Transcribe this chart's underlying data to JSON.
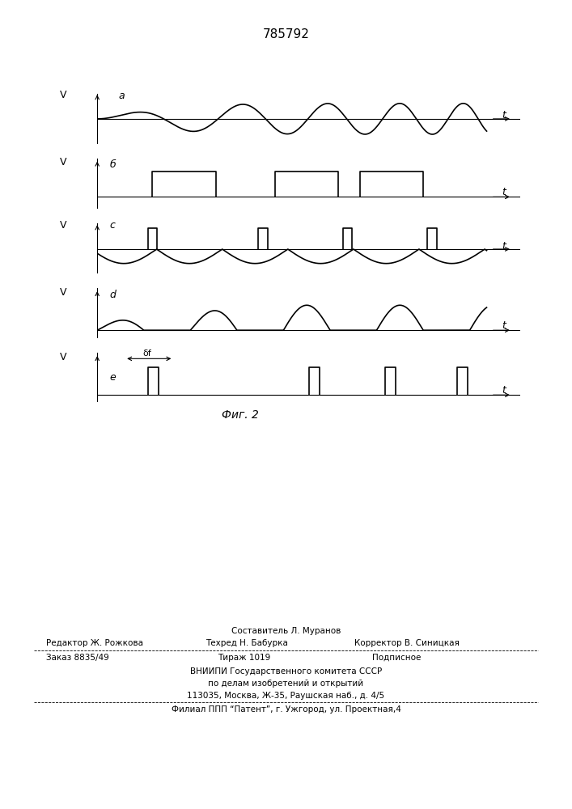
{
  "title": "785792",
  "fig_caption": "Фиг. 2",
  "background_color": "#ffffff",
  "line_color": "#000000",
  "panel_labels": [
    "a",
    "б",
    "c",
    "d",
    "e"
  ],
  "footer_text": [
    [
      0.5,
      "Составитель Л. Муранов",
      "center"
    ],
    [
      0.08,
      "Редактор Ж. Рожкова",
      "left"
    ],
    [
      0.35,
      "Техред Н. Бабурка",
      "left"
    ],
    [
      0.62,
      "Корректор В. Синицкая",
      "left"
    ],
    [
      0.08,
      "Заказ 8835/49",
      "left"
    ],
    [
      0.38,
      "Тираж 1019",
      "left"
    ],
    [
      0.65,
      "Подписное",
      "left"
    ],
    [
      0.5,
      "ВНИИПИ Государственного комитета СССР",
      "center"
    ],
    [
      0.5,
      "по делам изобретений и открытий",
      "center"
    ],
    [
      0.5,
      "113035, Москва, Ж-35, Раушская наб., д. 4/5",
      "center"
    ],
    [
      0.5,
      "Филиал ППП “Патент”, г. Ужгород, ул. Проектная,4",
      "center"
    ]
  ]
}
